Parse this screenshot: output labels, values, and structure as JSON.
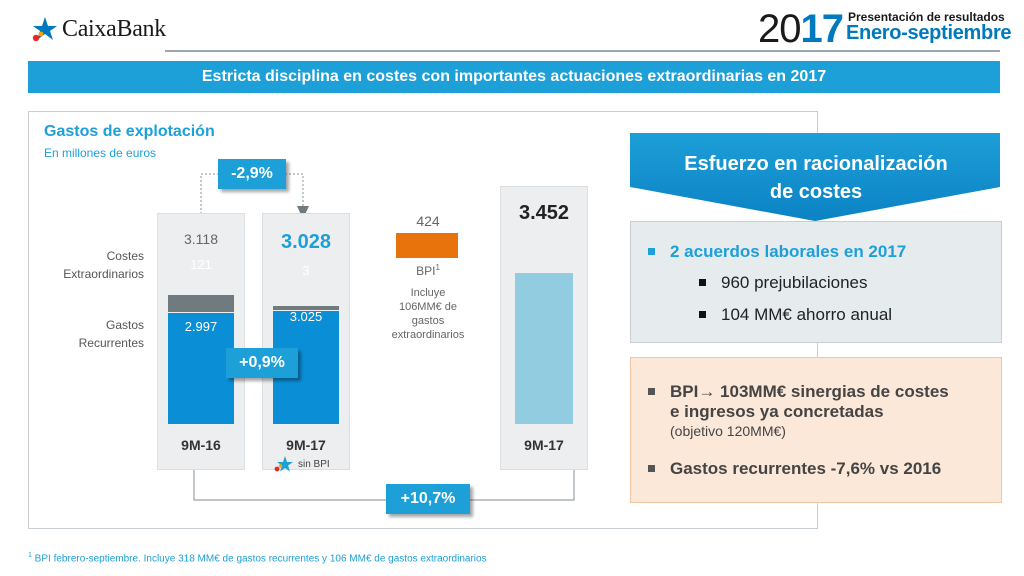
{
  "header": {
    "logo_text": "CaixaBank",
    "year_prefix": "20",
    "year_suffix": "17",
    "presentation_label": "Presentación de resultados",
    "period": "Enero-septiembre"
  },
  "banner_title": "Estricta disciplina en costes con importantes actuaciones extraordinarias en 2017",
  "chart": {
    "title": "Gastos de explotación",
    "subtitle": "En millones de euros",
    "category_labels": [
      "Costes Extraordinarios",
      "Gastos Recurrentes"
    ],
    "change_badge_top": "-2,9%",
    "change_badge_mid": "+0,9%",
    "change_badge_bottom": "+10,7%",
    "bpi_note_line1": "Incluye",
    "bpi_note_line2": "106MM€ de",
    "bpi_note_line3": "gastos",
    "bpi_note_line4": "extraordinarios",
    "sin_bpi_label": "sin BPI",
    "bpi_label": "BPI",
    "bpi_sup": "1"
  },
  "chart_data": {
    "type": "bar",
    "stacked": true,
    "categories": [
      "9M-16",
      "9M-17",
      "9M-17"
    ],
    "series": [
      {
        "name": "Gastos Recurrentes",
        "values": [
          "2.997",
          "3.025",
          null
        ]
      },
      {
        "name": "Costes Extraordinarios",
        "values": [
          "121",
          "3",
          null
        ]
      }
    ],
    "totals": [
      "3.118",
      "3.028",
      "3.452"
    ],
    "bpi": {
      "label": "BPI",
      "value": "424"
    },
    "numeric": {
      "recurrent": [
        2997,
        3025,
        null
      ],
      "extraordinary": [
        121,
        3,
        null
      ],
      "totals": [
        3118,
        3028,
        3452
      ],
      "bpi": 424
    },
    "colors": {
      "recurrent": "#0a8fd6",
      "extraordinary": "#707b80",
      "total_2017": "#92cce0",
      "bpi": "#e8720c"
    }
  },
  "right": {
    "heading_line1": "Esfuerzo en racionalización",
    "heading_line2": "de costes",
    "box1": {
      "title": "2 acuerdos laborales en 2017",
      "items": [
        "960 prejubilaciones",
        "104 MM€ ahorro anual"
      ]
    },
    "box2": {
      "item1_line1": "BPI→ 103MM€ sinergias de costes",
      "item1_line2": "e ingresos ya concretadas",
      "item1_note": "(objetivo 120MM€)",
      "item2": "Gastos recurrentes -7,6% vs 2016"
    }
  },
  "footnote": {
    "sup": "1",
    "text": " BPI febrero-septiembre. Incluye 318 MM€ de gastos recurrentes y 106 MM€ de gastos extraordinarios"
  },
  "colors": {
    "brand_blue": "#1d9fd8",
    "dark_blue": "#0079bf",
    "orange": "#e8720c"
  }
}
